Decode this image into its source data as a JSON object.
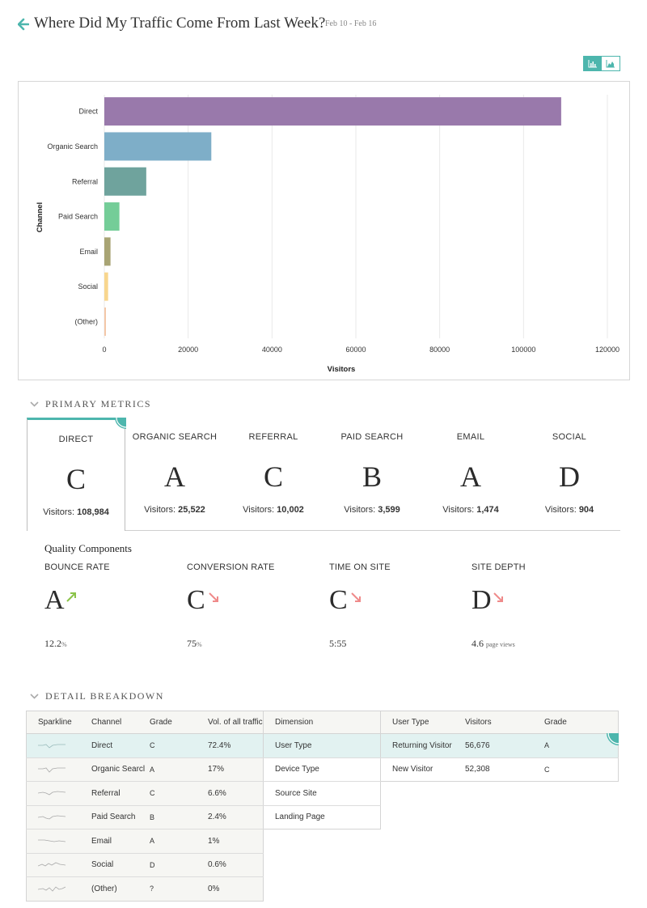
{
  "header": {
    "title": "Where Did My Traffic Come From Last Week?",
    "date_range": "Feb 10 - Feb 16"
  },
  "colors": {
    "accent": "#4db6ad",
    "up_arrow": "#8bc34a",
    "down_arrow": "#ef8a8a"
  },
  "chart_data": {
    "type": "bar",
    "orientation": "horizontal",
    "categories": [
      "Direct",
      "Organic Search",
      "Referral",
      "Paid Search",
      "Email",
      "Social",
      "(Other)"
    ],
    "values": [
      108984,
      25522,
      10002,
      3599,
      1474,
      904,
      150
    ],
    "bar_colors": [
      "#9979ab",
      "#7eaec8",
      "#6fa39d",
      "#74cd98",
      "#a8a474",
      "#f8d68e",
      "#f3c7a8"
    ],
    "xlabel": "Visitors",
    "ylabel": "Channel",
    "xlim": [
      0,
      120000
    ],
    "xticks": [
      "0",
      "20000",
      "40000",
      "60000",
      "80000",
      "100000",
      "120000"
    ],
    "grid": "vertical"
  },
  "primary_metrics": {
    "heading": "PRIMARY METRICS",
    "visitors_label": "Visitors:",
    "channels": [
      {
        "name": "DIRECT",
        "grade": "C",
        "visitors": "108,984"
      },
      {
        "name": "ORGANIC SEARCH",
        "grade": "A",
        "visitors": "25,522"
      },
      {
        "name": "REFERRAL",
        "grade": "C",
        "visitors": "10,002"
      },
      {
        "name": "PAID SEARCH",
        "grade": "B",
        "visitors": "3,599"
      },
      {
        "name": "EMAIL",
        "grade": "A",
        "visitors": "1,474"
      },
      {
        "name": "SOCIAL",
        "grade": "D",
        "visitors": "904"
      }
    ]
  },
  "quality_components": {
    "title": "Quality Components",
    "items": [
      {
        "name": "BOUNCE RATE",
        "grade": "A",
        "trend": "up",
        "value": "12.2",
        "unit": "%"
      },
      {
        "name": "CONVERSION RATE",
        "grade": "C",
        "trend": "down",
        "value": "75",
        "unit": "%"
      },
      {
        "name": "TIME ON SITE",
        "grade": "C",
        "trend": "down",
        "value": "5:55",
        "unit": ""
      },
      {
        "name": "SITE DEPTH",
        "grade": "D",
        "trend": "down",
        "value": "4.6",
        "unit": "page views"
      }
    ]
  },
  "detail_breakdown": {
    "heading": "DETAIL BREAKDOWN",
    "channel_table": {
      "headers": [
        "Sparkline",
        "Channel",
        "Grade",
        "Vol. of all traffic"
      ],
      "rows": [
        {
          "channel": "Direct",
          "grade": "C",
          "volume": "72.4%"
        },
        {
          "channel": "Organic Searcl",
          "grade": "A",
          "volume": "17%"
        },
        {
          "channel": "Referral",
          "grade": "C",
          "volume": "6.6%"
        },
        {
          "channel": "Paid Search",
          "grade": "B",
          "volume": "2.4%"
        },
        {
          "channel": "Email",
          "grade": "A",
          "volume": "1%"
        },
        {
          "channel": "Social",
          "grade": "D",
          "volume": "0.6%"
        },
        {
          "channel": "(Other)",
          "grade": "?",
          "volume": "0%"
        }
      ]
    },
    "dimension_table": {
      "header": "Dimension",
      "rows": [
        "User Type",
        "Device Type",
        "Source Site",
        "Landing Page"
      ]
    },
    "user_type_table": {
      "headers": [
        "User Type",
        "Visitors",
        "Grade"
      ],
      "rows": [
        {
          "type": "Returning Visitor",
          "visitors": "56,676",
          "grade": "A"
        },
        {
          "type": "New Visitor",
          "visitors": "52,308",
          "grade": "C"
        }
      ]
    }
  }
}
